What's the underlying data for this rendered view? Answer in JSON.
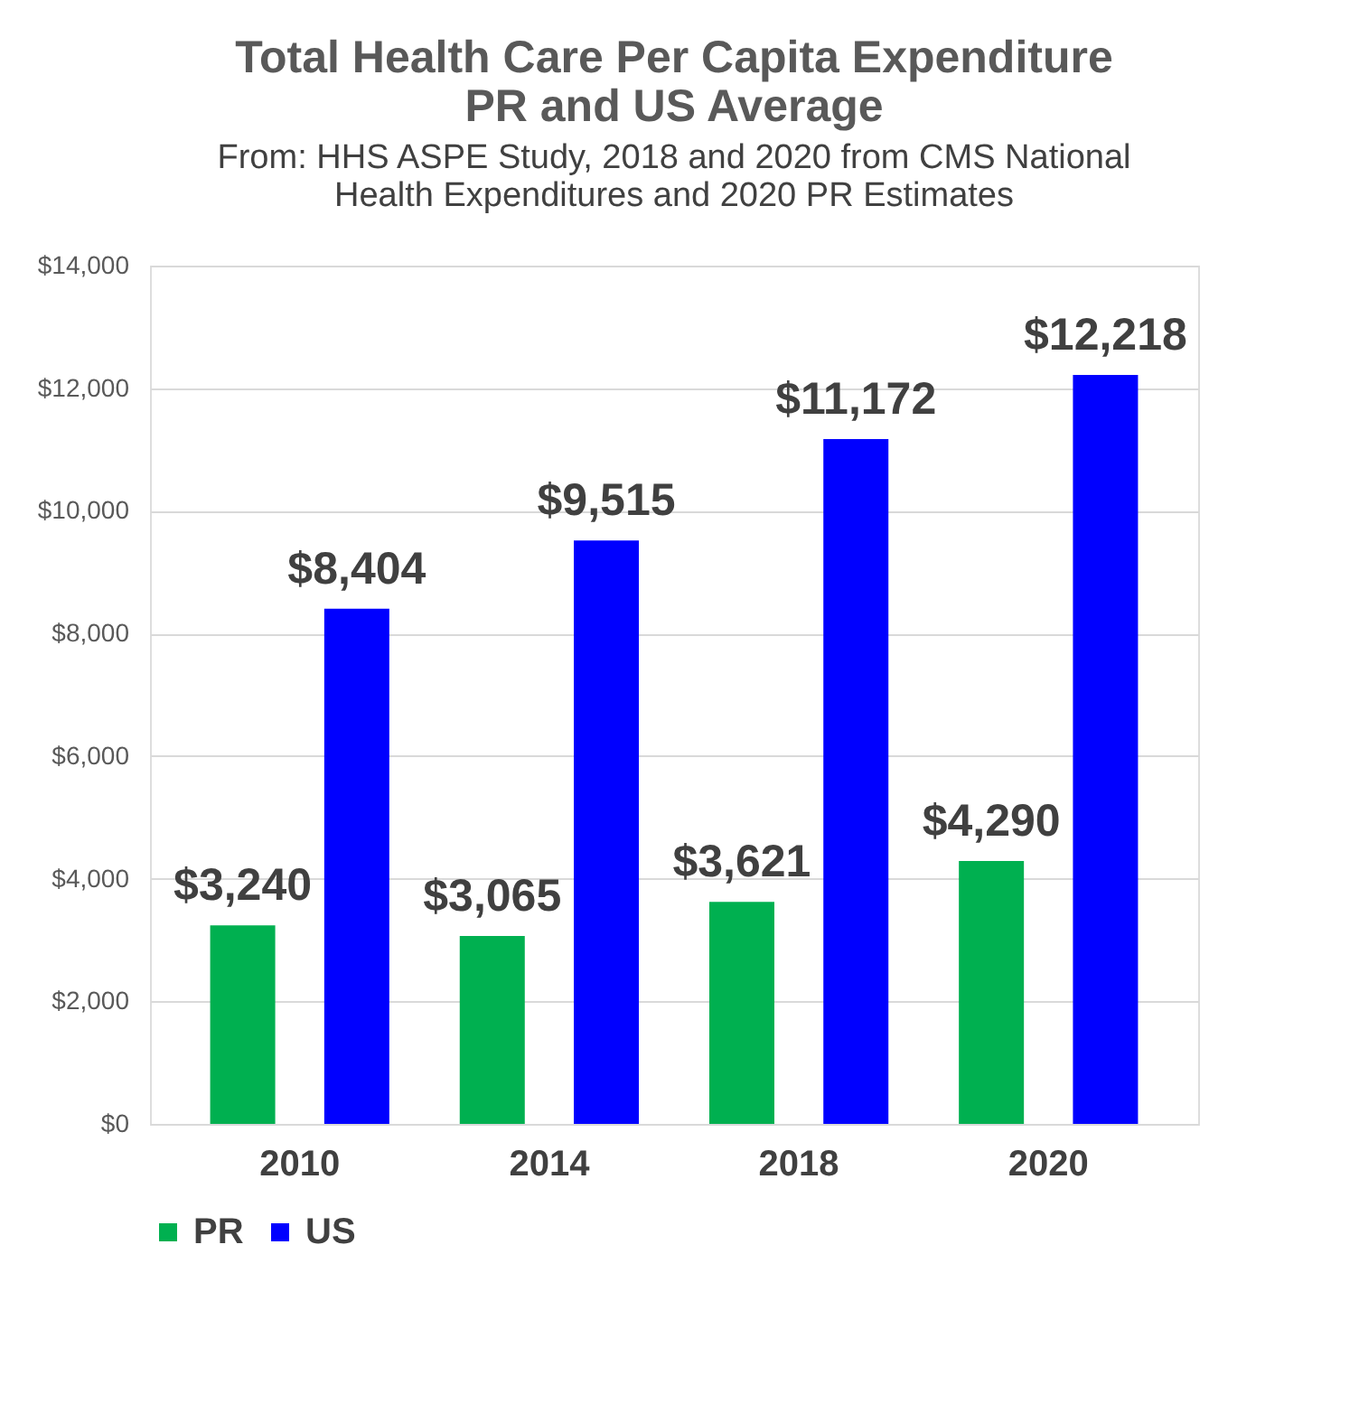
{
  "chart_data": {
    "type": "bar",
    "title": "Total Health Care Per Capita Expenditure\nPR and US Average",
    "subtitle": "From: HHS ASPE Study, 2018 and 2020 from CMS National\nHealth Expenditures and 2020 PR Estimates",
    "categories": [
      "2010",
      "2014",
      "2018",
      "2020"
    ],
    "series": [
      {
        "name": "PR",
        "color": "#00b050",
        "values": [
          3240,
          3065,
          3621,
          4290
        ],
        "value_labels": [
          "$3,240",
          "$3,065",
          "$3,621",
          "$4,290"
        ]
      },
      {
        "name": "US",
        "color": "#0000ff",
        "values": [
          8404,
          9515,
          11172,
          12218
        ],
        "value_labels": [
          "$8,404",
          "$9,515",
          "$11,172",
          "$12,218"
        ]
      }
    ],
    "ylim": [
      0,
      14000
    ],
    "yticks": [
      {
        "value": 0,
        "label": "$0"
      },
      {
        "value": 2000,
        "label": "$2,000"
      },
      {
        "value": 4000,
        "label": "$4,000"
      },
      {
        "value": 6000,
        "label": "$6,000"
      },
      {
        "value": 8000,
        "label": "$8,000"
      },
      {
        "value": 10000,
        "label": "$10,000"
      },
      {
        "value": 12000,
        "label": "$12,000"
      },
      {
        "value": 14000,
        "label": "$14,000"
      }
    ],
    "grid": "y",
    "legend": "bottom"
  }
}
